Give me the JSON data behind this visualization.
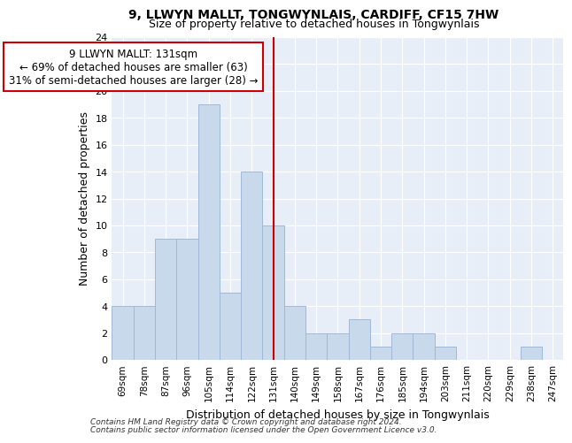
{
  "title1": "9, LLWYN MALLT, TONGWYNLAIS, CARDIFF, CF15 7HW",
  "title2": "Size of property relative to detached houses in Tongwynlais",
  "xlabel": "Distribution of detached houses by size in Tongwynlais",
  "ylabel": "Number of detached properties",
  "categories": [
    "69sqm",
    "78sqm",
    "87sqm",
    "96sqm",
    "105sqm",
    "114sqm",
    "122sqm",
    "131sqm",
    "140sqm",
    "149sqm",
    "158sqm",
    "167sqm",
    "176sqm",
    "185sqm",
    "194sqm",
    "203sqm",
    "211sqm",
    "220sqm",
    "229sqm",
    "238sqm",
    "247sqm"
  ],
  "values": [
    4,
    4,
    9,
    9,
    19,
    5,
    14,
    10,
    4,
    2,
    2,
    3,
    1,
    2,
    2,
    1,
    0,
    0,
    0,
    1,
    0
  ],
  "bar_color": "#c9d9ec",
  "bar_edge_color": "#a0b8d8",
  "marker_index": 7,
  "marker_color": "#cc0000",
  "ylim": [
    0,
    24
  ],
  "yticks": [
    0,
    2,
    4,
    6,
    8,
    10,
    12,
    14,
    16,
    18,
    20,
    22,
    24
  ],
  "annotation_title": "9 LLWYN MALLT: 131sqm",
  "annotation_line1": "← 69% of detached houses are smaller (63)",
  "annotation_line2": "31% of semi-detached houses are larger (28) →",
  "annotation_box_color": "#ffffff",
  "annotation_border_color": "#cc0000",
  "footer1": "Contains HM Land Registry data © Crown copyright and database right 2024.",
  "footer2": "Contains public sector information licensed under the Open Government Licence v3.0.",
  "plot_bg_color": "#e8eef8"
}
